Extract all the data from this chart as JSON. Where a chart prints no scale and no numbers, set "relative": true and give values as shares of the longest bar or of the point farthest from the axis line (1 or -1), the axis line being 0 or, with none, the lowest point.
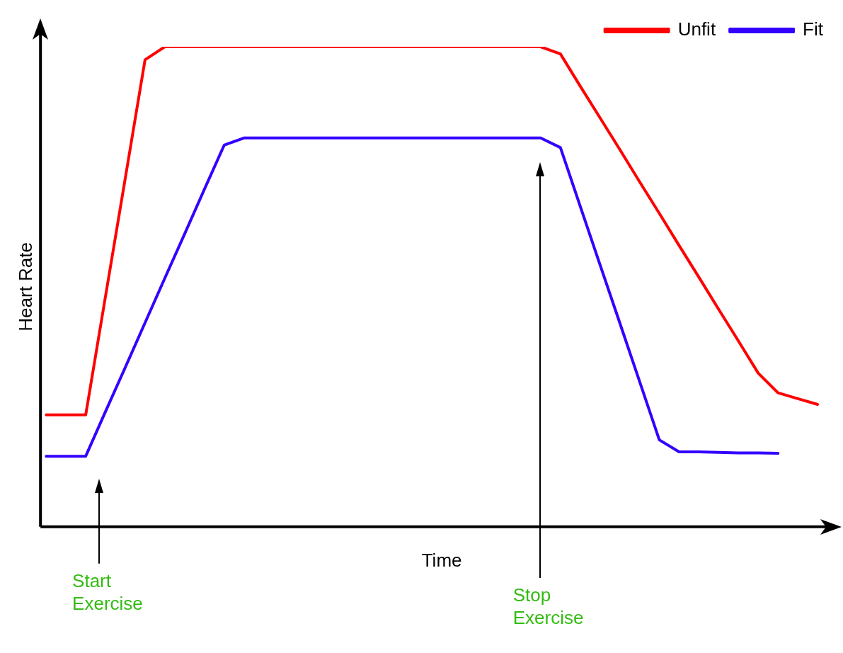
{
  "chart_data": {
    "type": "line",
    "relative": true,
    "xlabel": "Time",
    "ylabel": "Heart Rate",
    "tick_labels": false,
    "grid": false,
    "legend": "top right",
    "marker": "none",
    "line_style": "solid",
    "categories": [
      null,
      null,
      null,
      null,
      null,
      null,
      null,
      null,
      null,
      null,
      null,
      null,
      null,
      null,
      null,
      null,
      null,
      null,
      null,
      null,
      null,
      null,
      null,
      null,
      null,
      null,
      null,
      null,
      null,
      null,
      null,
      null,
      null,
      null,
      null,
      null,
      null,
      null,
      null,
      null,
      null
    ],
    "series": [
      {
        "name": "Unfit",
        "color": "#ff0000",
        "values": [
          0.233,
          0.233,
          0.233,
          0.48,
          0.726,
          0.973,
          1,
          1,
          1,
          1,
          1,
          1,
          1,
          1,
          1,
          1,
          1,
          1,
          1,
          1,
          1,
          1,
          1,
          1,
          1,
          1,
          0.985,
          0.918,
          0.852,
          0.786,
          0.719,
          0.653,
          0.586,
          0.52,
          0.453,
          0.387,
          0.32,
          0.279,
          0.267,
          0.255,
          null
        ]
      },
      {
        "name": "Fit",
        "color": "#3300ff",
        "values": [
          0.147,
          0.147,
          0.147,
          0.24,
          0.332,
          0.425,
          0.518,
          0.61,
          0.703,
          0.795,
          0.81,
          0.81,
          0.81,
          0.81,
          0.81,
          0.81,
          0.81,
          0.81,
          0.81,
          0.81,
          0.81,
          0.81,
          0.81,
          0.81,
          0.81,
          0.81,
          0.79,
          0.668,
          0.546,
          0.425,
          0.303,
          0.181,
          0.156,
          0.156,
          0.155,
          0.154,
          0.154,
          0.153,
          null,
          null,
          null
        ]
      }
    ],
    "annotations": [
      "Start Exercise",
      "Stop Exercise"
    ]
  }
}
